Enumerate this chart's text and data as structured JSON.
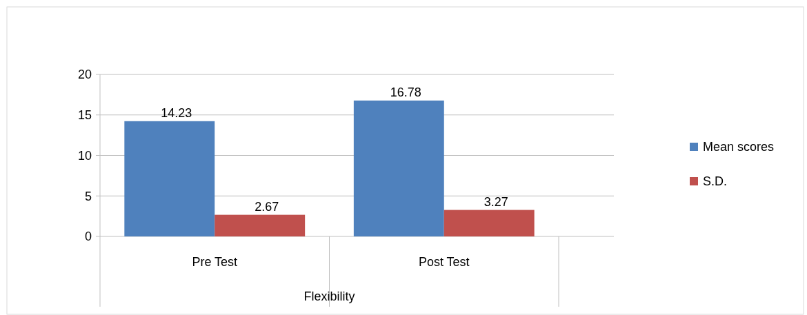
{
  "chart_data": {
    "type": "bar",
    "xlabel": "Flexibility",
    "categories": [
      "Pre Test",
      "Post Test"
    ],
    "series": [
      {
        "name": "Mean scores",
        "color": "#4f81bd",
        "values": [
          14.23,
          16.78
        ]
      },
      {
        "name": "S.D.",
        "color": "#c0504d",
        "values": [
          2.67,
          3.27
        ]
      }
    ],
    "ylim": [
      0,
      20
    ],
    "yticks": [
      0,
      5,
      10,
      15,
      20
    ],
    "grid": "y",
    "data_labels": true,
    "legend": "right"
  }
}
